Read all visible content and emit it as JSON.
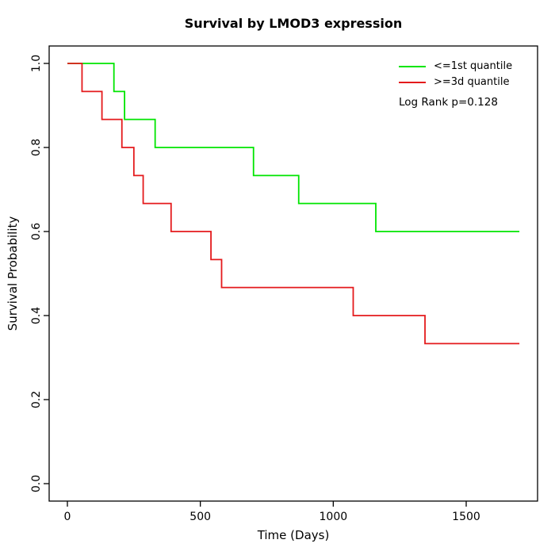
{
  "chart_data": {
    "type": "line",
    "chart_kind": "kaplan_meier_step",
    "title": "Survival by LMOD3 expression",
    "xlabel": "Time (Days)",
    "ylabel": "Survival Probability",
    "xlim": [
      0,
      1750
    ],
    "ylim": [
      0.0,
      1.0
    ],
    "xticks": [
      0,
      500,
      1000,
      1500
    ],
    "yticks": [
      0.0,
      0.2,
      0.4,
      0.6,
      0.8,
      1.0
    ],
    "grid": false,
    "legend_position": "top-right",
    "annotation": "Log Rank p=0.128",
    "series": [
      {
        "name": "<=1st quantile",
        "color": "#00e500",
        "start": [
          0,
          1.0
        ],
        "end_time": 1700,
        "steps": [
          [
            175,
            0.9333
          ],
          [
            215,
            0.8667
          ],
          [
            330,
            0.8
          ],
          [
            700,
            0.7333
          ],
          [
            870,
            0.6667
          ],
          [
            1160,
            0.6
          ]
        ]
      },
      {
        "name": ">=3d quantile",
        "color": "#e41a1c",
        "start": [
          0,
          1.0
        ],
        "end_time": 1700,
        "steps": [
          [
            55,
            0.9333
          ],
          [
            130,
            0.8667
          ],
          [
            205,
            0.8
          ],
          [
            250,
            0.7333
          ],
          [
            285,
            0.6667
          ],
          [
            390,
            0.6
          ],
          [
            540,
            0.5333
          ],
          [
            580,
            0.4667
          ],
          [
            1075,
            0.4
          ],
          [
            1345,
            0.3333
          ]
        ]
      }
    ]
  },
  "colors": {
    "foreground": "#000000",
    "background": "#ffffff"
  }
}
